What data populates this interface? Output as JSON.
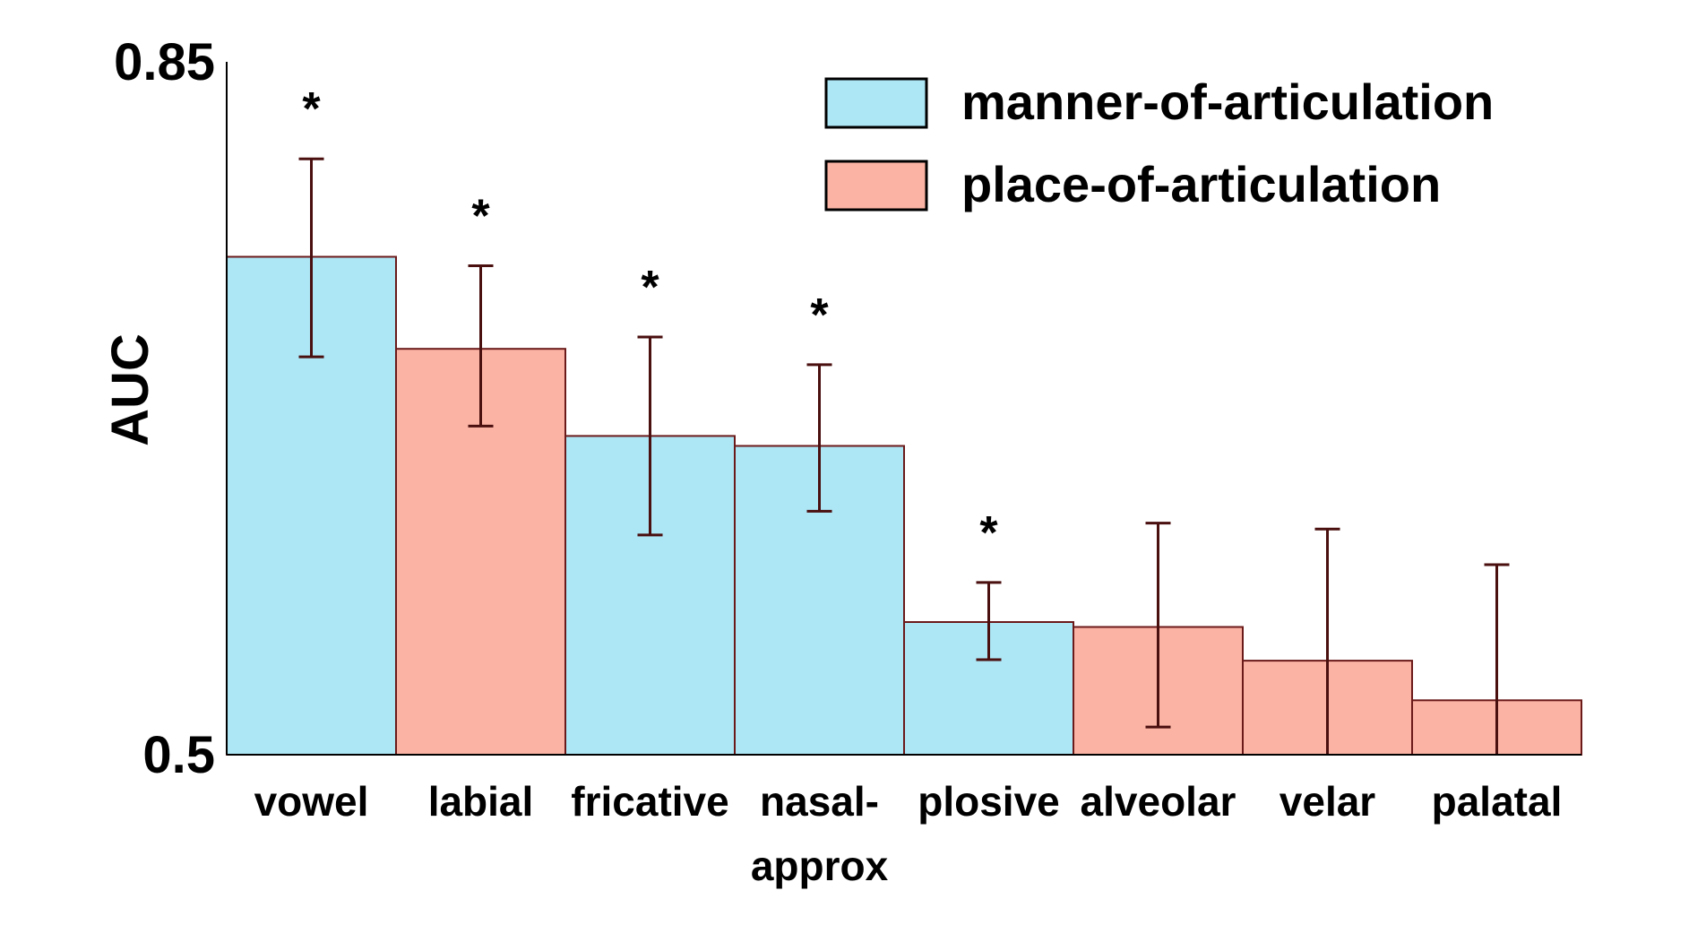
{
  "chart_data": {
    "type": "bar",
    "title": "",
    "xlabel": "",
    "ylabel": "AUC",
    "ylim": [
      0.5,
      0.85
    ],
    "y_ticks": [
      "0.85",
      "0.5"
    ],
    "grid": false,
    "legend_placement": "top-right",
    "legend": [
      {
        "name": "manner-of-articulation",
        "color": "#ade6f5"
      },
      {
        "name": "place-of-articulation",
        "color": "#fbb3a4"
      }
    ],
    "categories": [
      "vowel",
      "labial",
      "fricative",
      "nasal-approx",
      "plosive",
      "alveolar",
      "velar",
      "palatal"
    ],
    "category_labels": [
      [
        "vowel"
      ],
      [
        "labial"
      ],
      [
        "fricative"
      ],
      [
        "nasal-",
        "approx"
      ],
      [
        "plosive"
      ],
      [
        "alveolar"
      ],
      [
        "velar"
      ],
      [
        "palatal"
      ]
    ],
    "values": [
      0.7515,
      0.705,
      0.661,
      0.656,
      0.567,
      0.5645,
      0.5475,
      0.5275
    ],
    "group": [
      "manner",
      "place",
      "manner",
      "manner",
      "manner",
      "place",
      "place",
      "place"
    ],
    "error_low": [
      0.701,
      0.666,
      0.611,
      0.623,
      0.548,
      0.514,
      0.5,
      0.5
    ],
    "error_high": [
      0.801,
      0.747,
      0.711,
      0.697,
      0.587,
      0.617,
      0.614,
      0.596
    ],
    "significance": [
      "*",
      "*",
      "*",
      "*",
      "*",
      "",
      "",
      ""
    ],
    "colors": {
      "manner": "#ade6f5",
      "place": "#fbb3a4",
      "bar_edge": "#6b1a1a",
      "error_bar": "#4a0f0f",
      "axis": "#000000"
    }
  }
}
